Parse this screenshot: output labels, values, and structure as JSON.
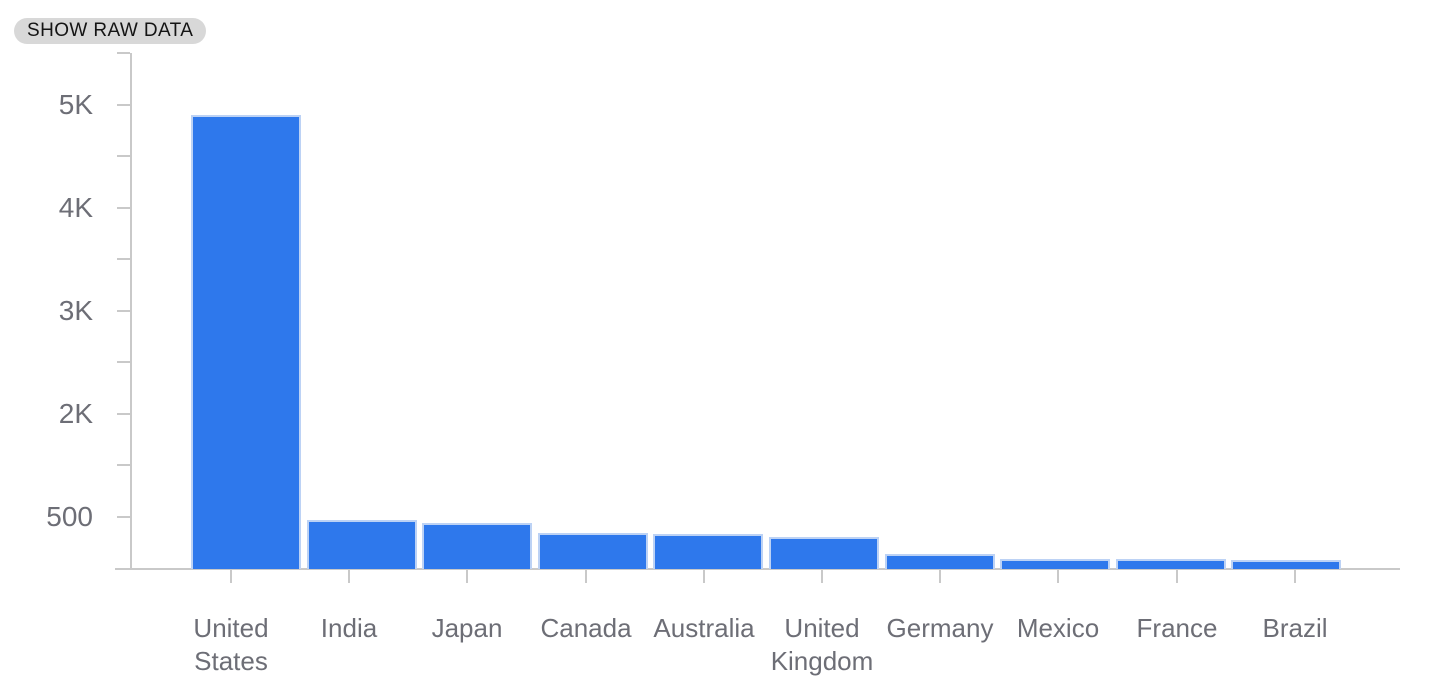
{
  "controls": {
    "show_raw_data_label": "SHOW RAW DATA"
  },
  "chart_data": {
    "type": "bar",
    "title": "",
    "xlabel": "",
    "ylabel": "",
    "categories": [
      "United States",
      "India",
      "Japan",
      "Canada",
      "Australia",
      "United Kingdom",
      "Germany",
      "Mexico",
      "France",
      "Brazil"
    ],
    "values": [
      4870,
      530,
      495,
      385,
      375,
      345,
      160,
      105,
      105,
      95
    ],
    "y_tick_labels": [
      "5K",
      "4K",
      "3K",
      "2K",
      "500"
    ],
    "ylim": [
      0,
      5450
    ],
    "grid": false,
    "legend": false,
    "bar_color": "#2e78ec",
    "bar_edge_color": "#bcd2f5",
    "axis_color": "#c9c9c9",
    "label_color": "#6d6e76"
  }
}
